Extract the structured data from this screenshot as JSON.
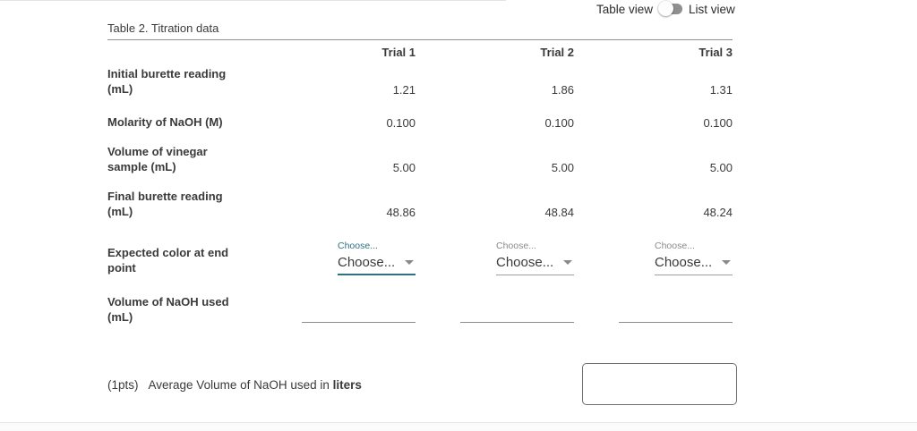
{
  "view_toggle": {
    "left_label": "Table view",
    "right_label": "List view",
    "state": "table"
  },
  "table": {
    "title": "Table 2. Titration data",
    "columns": [
      "Trial 1",
      "Trial 2",
      "Trial 3"
    ],
    "rows": [
      {
        "label": "Initial burette reading\n(mL)",
        "values": [
          "1.21",
          "1.86",
          "1.31"
        ]
      },
      {
        "label": "Molarity of NaOH (M)",
        "values": [
          "0.100",
          "0.100",
          "0.100"
        ]
      },
      {
        "label": "Volume of vinegar\nsample (mL)",
        "values": [
          "5.00",
          "5.00",
          "5.00"
        ]
      },
      {
        "label": "Final burette reading\n(mL)",
        "values": [
          "48.86",
          "48.84",
          "48.24"
        ]
      },
      {
        "label": "Expected color at end\npoint",
        "dropdowns": [
          {
            "floating_label": "Choose...",
            "value": "Choose...",
            "active": true
          },
          {
            "floating_label": "Choose...",
            "value": "Choose...",
            "active": false
          },
          {
            "floating_label": "Choose...",
            "value": "Choose...",
            "active": false
          }
        ]
      },
      {
        "label": "Volume of NaOH used\n(mL)",
        "inputs": [
          "",
          "",
          ""
        ]
      }
    ]
  },
  "question": {
    "points_label": "(1pts)",
    "prompt_prefix": "Average Volume of NaOH used in ",
    "prompt_bold": "liters",
    "answer_value": ""
  },
  "colors": {
    "accent_teal": "#2e7282",
    "underline_gray": "#8c8c8c",
    "text_main": "#3a3a3a",
    "switch_track": "#8f8f8f"
  }
}
